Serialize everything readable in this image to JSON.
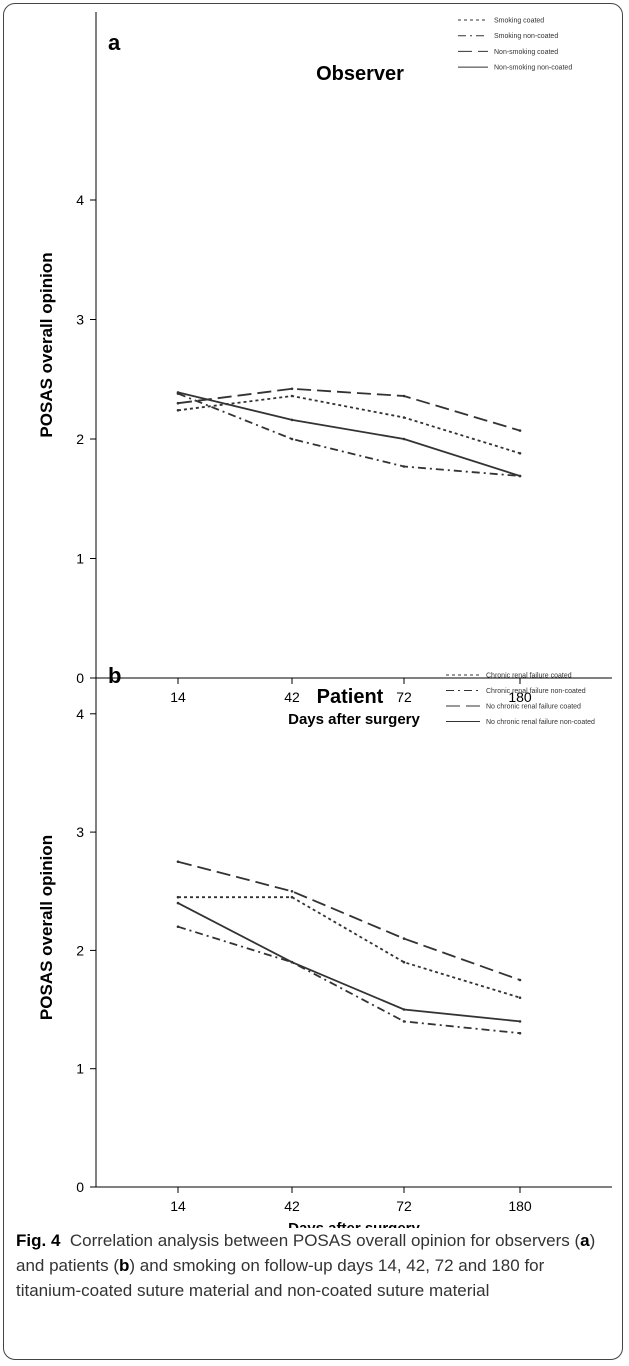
{
  "chart_data": [
    {
      "type": "line",
      "panel_letter": "a",
      "title": "Observer",
      "xlabel": "Days after surgery",
      "ylabel": "POSAS overall opinion",
      "categories": [
        "14",
        "42",
        "72",
        "180"
      ],
      "ylim": [
        0,
        4.3
      ],
      "yticks": [
        "0",
        "1",
        "2",
        "3",
        "4"
      ],
      "grid": false,
      "legend_position": "top-right",
      "series": [
        {
          "name": "Smoking coated",
          "values": [
            2.24,
            2.36,
            2.18,
            1.88
          ],
          "dash": "dotted"
        },
        {
          "name": "Smoking non-coated",
          "values": [
            2.38,
            2.0,
            1.77,
            1.69
          ],
          "dash": "dashdot"
        },
        {
          "name": "Non-smoking coated",
          "values": [
            2.3,
            2.42,
            2.36,
            2.07
          ],
          "dash": "longdash"
        },
        {
          "name": "Non-smoking non-coated",
          "values": [
            2.39,
            2.16,
            2.0,
            1.69
          ],
          "dash": "solid"
        }
      ]
    },
    {
      "type": "line",
      "panel_letter": "b",
      "title": "Patient",
      "xlabel": "Days after surgery",
      "ylabel": "POSAS overall opinion",
      "categories": [
        "14",
        "42",
        "72",
        "180"
      ],
      "ylim": [
        0,
        4.3
      ],
      "yticks": [
        "0",
        "1",
        "2",
        "3",
        "4"
      ],
      "grid": false,
      "legend_position": "top-right",
      "series": [
        {
          "name": "Chronic renal failure coated",
          "values": [
            2.45,
            2.45,
            1.9,
            1.6
          ],
          "dash": "dotted"
        },
        {
          "name": "Chronic renal failure non-coated",
          "values": [
            2.2,
            1.9,
            1.4,
            1.3
          ],
          "dash": "dashdot"
        },
        {
          "name": "No chronic renal failure coated",
          "values": [
            2.75,
            2.5,
            2.1,
            1.75
          ],
          "dash": "longdash"
        },
        {
          "name": "No chronic renal failure non-coated",
          "values": [
            2.4,
            1.9,
            1.5,
            1.4
          ],
          "dash": "solid"
        }
      ]
    }
  ],
  "caption": {
    "label": "Fig. 4",
    "text_1": "Correlation analysis between POSAS overall opinion for observers (",
    "bold_a": "a",
    "text_2": ") and patients (",
    "bold_b": "b",
    "text_3": ") and smoking on follow-up days 14, 42, 72 and 180 for titanium-coated suture material and non-coated suture material"
  }
}
